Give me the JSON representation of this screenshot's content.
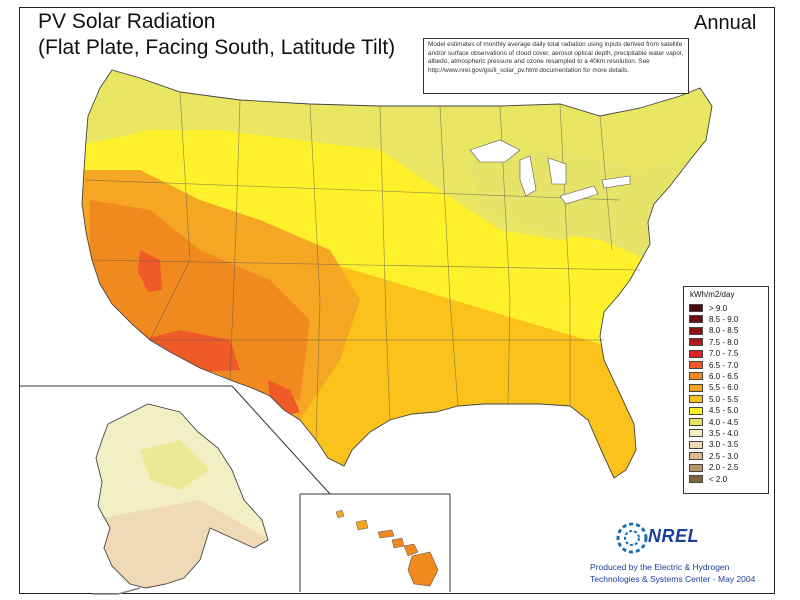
{
  "map": {
    "title_line1": "PV Solar Radiation",
    "title_line2": "(Flat Plate, Facing South, Latitude Tilt)",
    "period": "Annual",
    "note": "Model estimates of monthly average daily total radiation using inputs derived from satellite and/or surface observations of cloud cover, aerosol optical depth, precipitable water vapor, albedo, atmospheric pressure and ozone resampled to a 40km resolution. See http://www.nrel.gov/gis/il_solar_pv.html documentation for more details."
  },
  "legend": {
    "title": "kWh/m2/day",
    "items": [
      {
        "label": "> 9.0",
        "color": "#4a0a0a"
      },
      {
        "label": "8.5 - 9.0",
        "color": "#6b0f0f"
      },
      {
        "label": "8.0 - 8.5",
        "color": "#8a1414"
      },
      {
        "label": "7.5 - 8.0",
        "color": "#b01a1a"
      },
      {
        "label": "7.0 - 7.5",
        "color": "#e02020"
      },
      {
        "label": "6.5 - 7.0",
        "color": "#f05a28"
      },
      {
        "label": "6.0 - 6.5",
        "color": "#f08a1e"
      },
      {
        "label": "5.5 - 6.0",
        "color": "#f5a623"
      },
      {
        "label": "5.0 - 5.5",
        "color": "#fcc21c"
      },
      {
        "label": "4.5 - 5.0",
        "color": "#fef02a"
      },
      {
        "label": "4.0 - 4.5",
        "color": "#e6e468"
      },
      {
        "label": "3.5 - 4.0",
        "color": "#f2efc4"
      },
      {
        "label": "3.0 - 3.5",
        "color": "#f0d9b5"
      },
      {
        "label": "2.5 - 3.0",
        "color": "#d9b889"
      },
      {
        "label": "2.0 - 2.5",
        "color": "#b89566"
      },
      {
        "label": "< 2.0",
        "color": "#7a6440"
      }
    ]
  },
  "logo": {
    "name": "NREL"
  },
  "credit": {
    "line1": "Produced by the Electric & Hydrogen",
    "line2": "Technologies & Systems Center - May 2004"
  },
  "regions": {
    "conus": "contiguous-us",
    "alaska": "alaska",
    "hawaii": "hawaii"
  },
  "colors": {
    "north": "#e6e468",
    "plains": "#fef02a",
    "south": "#fcc21c",
    "southwest_mid": "#f5a623",
    "southwest_hot": "#f08a1e",
    "peak": "#f05a28",
    "alaska": "#f2efc4",
    "alaska_south": "#f0d9b5",
    "hawaii_hot": "#f08a1e",
    "hawaii_mid": "#f5a623",
    "borders": "#555555"
  }
}
